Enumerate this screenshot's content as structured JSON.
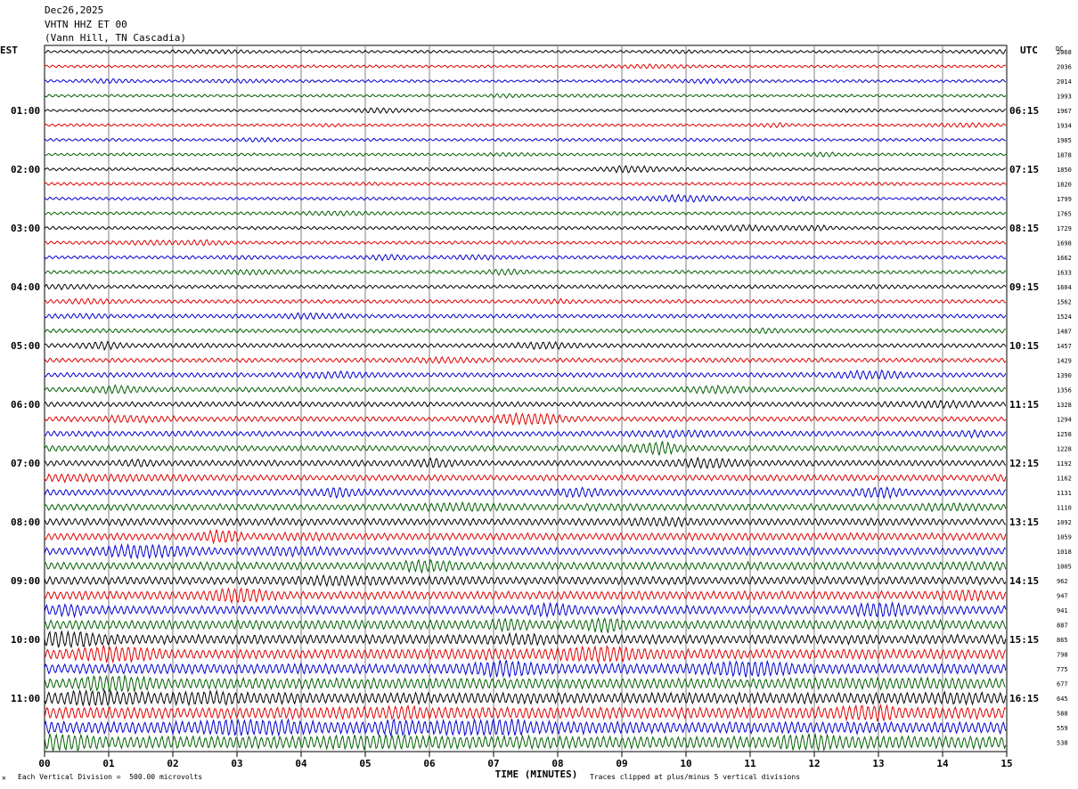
{
  "header": {
    "date": "Dec26,2025",
    "station": "VHTN HHZ ET 00",
    "location": "(Vann Hill, TN Cascadia)"
  },
  "left_label": "EST",
  "right_label": "UTC",
  "dc_label": "DC",
  "footer": {
    "scale_note": "Each Vertical Division =  500.00 microvolts",
    "clip_note": "Traces clipped at plus/minus 5 vertical divisions",
    "corner_mark": "✕"
  },
  "colors": {
    "black": "#000000",
    "red": "#e00000",
    "blue": "#0000d0",
    "green": "#006000",
    "grid": "#808080"
  },
  "chart_data": {
    "type": "line",
    "title": "VHTN HHZ ET 00",
    "xlabel": "TIME (MINUTES)",
    "ylabel": "",
    "x_ticks": [
      "00",
      "01",
      "02",
      "03",
      "04",
      "05",
      "06",
      "07",
      "08",
      "09",
      "10",
      "11",
      "12",
      "13",
      "14",
      "15"
    ],
    "xlim": [
      0,
      15
    ],
    "left_hour_labels": [
      "01:00",
      "02:00",
      "03:00",
      "04:00",
      "05:00",
      "06:00",
      "07:00",
      "08:00",
      "09:00",
      "10:00",
      "11:00"
    ],
    "right_hour_labels": [
      "06:15",
      "07:15",
      "08:15",
      "09:15",
      "10:15",
      "11:15",
      "12:15",
      "13:15",
      "14:15",
      "15:15",
      "16:15"
    ],
    "dc_offsets": [
      2068,
      2036,
      2014,
      1993,
      1967,
      1934,
      1905,
      1878,
      1850,
      1820,
      1799,
      1765,
      1729,
      1698,
      1662,
      1633,
      1604,
      1562,
      1524,
      1487,
      1457,
      1429,
      1390,
      1356,
      1328,
      1294,
      1258,
      1228,
      1192,
      1162,
      1131,
      1110,
      1092,
      1059,
      1018,
      1005,
      962,
      947,
      941,
      887,
      865,
      798,
      775,
      677,
      645,
      588,
      559,
      538
    ],
    "trace_color_cycle": [
      "black",
      "red",
      "blue",
      "green"
    ],
    "grid": true
  }
}
